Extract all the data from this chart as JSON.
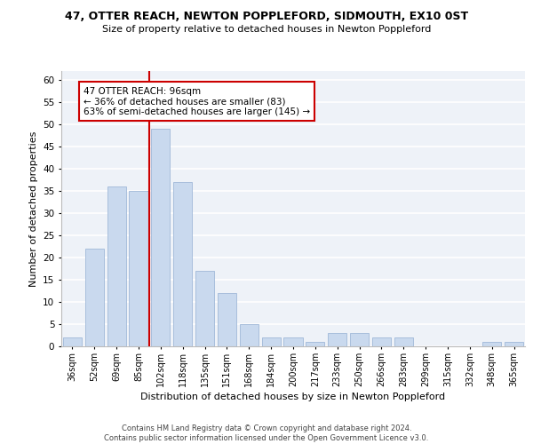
{
  "title1": "47, OTTER REACH, NEWTON POPPLEFORD, SIDMOUTH, EX10 0ST",
  "title2": "Size of property relative to detached houses in Newton Poppleford",
  "xlabel": "Distribution of detached houses by size in Newton Poppleford",
  "ylabel": "Number of detached properties",
  "footnote1": "Contains HM Land Registry data © Crown copyright and database right 2024.",
  "footnote2": "Contains public sector information licensed under the Open Government Licence v3.0.",
  "annotation_line1": "47 OTTER REACH: 96sqm",
  "annotation_line2": "← 36% of detached houses are smaller (83)",
  "annotation_line3": "63% of semi-detached houses are larger (145) →",
  "bar_color": "#c9d9ee",
  "bar_edge_color": "#a0b8d8",
  "vline_color": "#cc0000",
  "annotation_box_color": "#cc0000",
  "background_color": "#eef2f8",
  "categories": [
    "36sqm",
    "52sqm",
    "69sqm",
    "85sqm",
    "102sqm",
    "118sqm",
    "135sqm",
    "151sqm",
    "168sqm",
    "184sqm",
    "200sqm",
    "217sqm",
    "233sqm",
    "250sqm",
    "266sqm",
    "283sqm",
    "299sqm",
    "315sqm",
    "332sqm",
    "348sqm",
    "365sqm"
  ],
  "values": [
    2,
    22,
    36,
    35,
    49,
    37,
    17,
    12,
    5,
    2,
    2,
    1,
    3,
    3,
    2,
    2,
    0,
    0,
    0,
    1,
    1
  ],
  "ylim": [
    0,
    62
  ],
  "yticks": [
    0,
    5,
    10,
    15,
    20,
    25,
    30,
    35,
    40,
    45,
    50,
    55,
    60
  ],
  "vline_index": 3.5
}
